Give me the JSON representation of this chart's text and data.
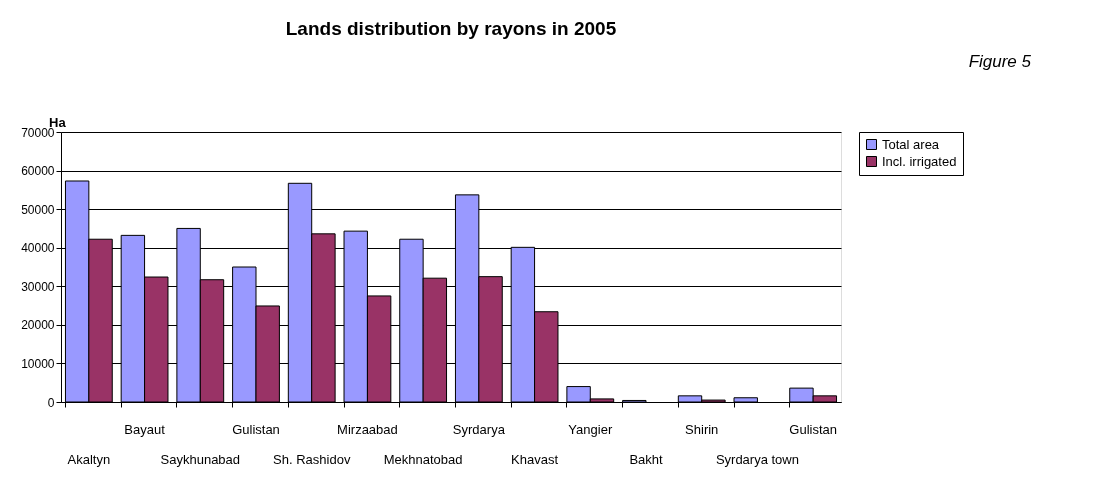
{
  "chart_data": {
    "type": "bar",
    "title": "Lands distribution by rayons in 2005",
    "ylabel": "Ha",
    "annotations": [
      "Figure 5"
    ],
    "categories": [
      "Akaltyn",
      "Bayaut",
      "Saykhunabad",
      "Gulistan",
      "Sh. Rashidov",
      "Mirzaabad",
      "Mekhnatobad",
      "Syrdarya",
      "Khavast",
      "Yangier",
      "Bakht",
      "Shirin",
      "Syrdarya  town",
      "Gulistan"
    ],
    "series": [
      {
        "name": "Total area",
        "color": "#9999ff",
        "values": [
          57300,
          43200,
          45000,
          35000,
          56700,
          44300,
          42200,
          53700,
          40100,
          4000,
          400,
          1600,
          1100,
          3600
        ]
      },
      {
        "name": "Incl. irrigated",
        "color": "#993366",
        "values": [
          42200,
          32400,
          31700,
          24900,
          43600,
          27500,
          32100,
          32500,
          23400,
          800,
          null,
          500,
          null,
          1600
        ]
      }
    ],
    "ylim": [
      0,
      70000
    ],
    "yticks": [
      0,
      10000,
      20000,
      30000,
      40000,
      50000,
      60000,
      70000
    ],
    "grid": "y",
    "legend": "right"
  }
}
